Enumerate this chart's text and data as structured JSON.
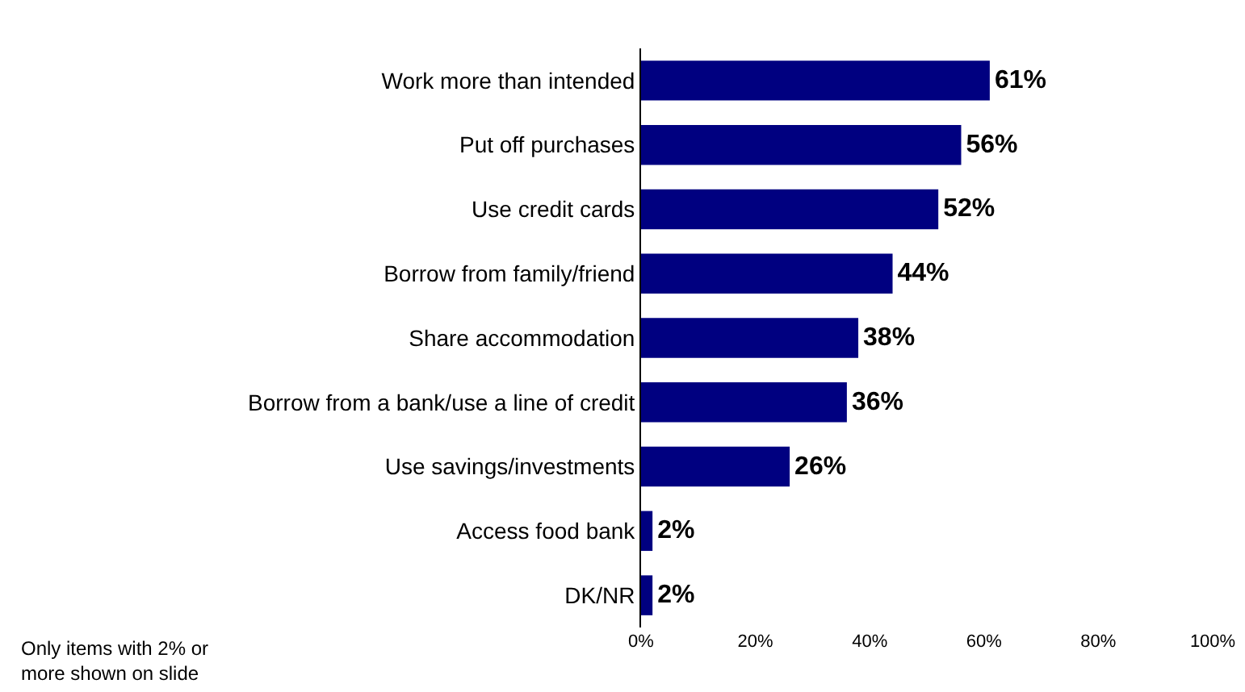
{
  "chart_data": {
    "type": "bar",
    "orientation": "horizontal",
    "categories": [
      "Work more than intended",
      "Put off purchases",
      "Use credit cards",
      "Borrow from family/friend",
      "Share accommodation",
      "Borrow from a bank/use a line of credit",
      "Use savings/investments",
      "Access food bank",
      "DK/NR"
    ],
    "values": [
      61,
      56,
      52,
      44,
      38,
      36,
      26,
      2,
      2
    ],
    "value_labels": [
      "61%",
      "56%",
      "52%",
      "44%",
      "38%",
      "36%",
      "26%",
      "2%",
      "2%"
    ],
    "color": "#000080",
    "xlim": [
      0,
      100
    ],
    "xticks": [
      {
        "value": 0,
        "label": "0%"
      },
      {
        "value": 20,
        "label": "20%"
      },
      {
        "value": 40,
        "label": "40%"
      },
      {
        "value": 60,
        "label": "60%"
      },
      {
        "value": 80,
        "label": "80%"
      },
      {
        "value": 100,
        "label": "100%"
      }
    ],
    "grid": false,
    "legend": false,
    "annotations": [
      "Only items with 2% or\nmore shown on slide"
    ]
  }
}
